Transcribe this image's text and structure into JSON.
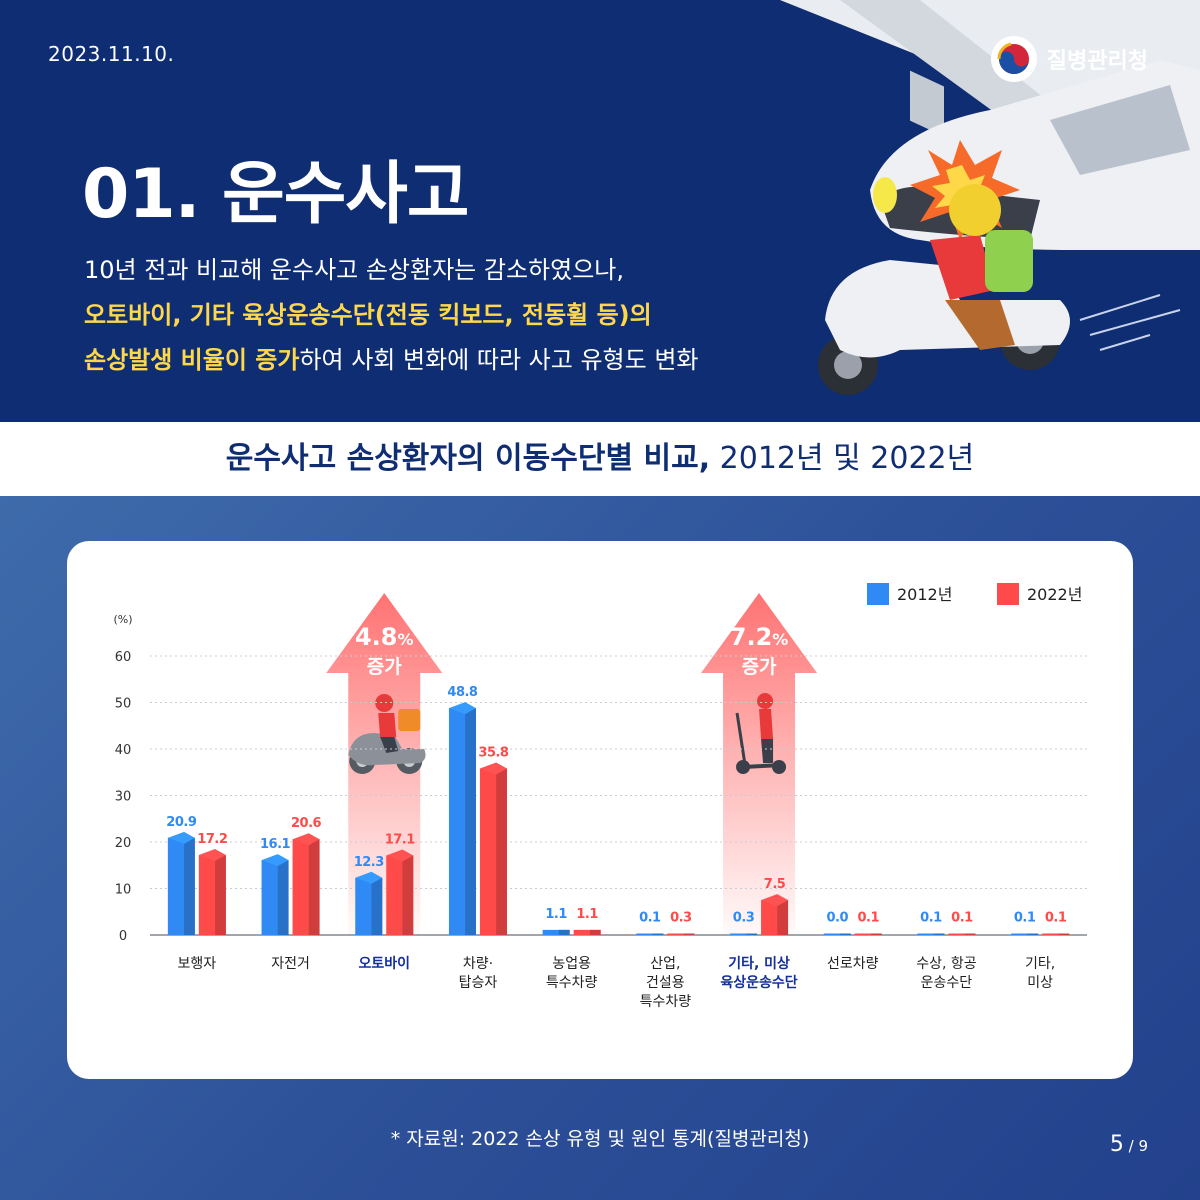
{
  "header": {
    "date": "2023.11.10.",
    "org": "질병관리청",
    "title": "01. 운수사고",
    "desc_line1": "10년 전과 비교해 운수사고 손상환자는 감소하였으나,",
    "desc_line2": "오토바이, 기타 육상운송수단(전동 킥보드, 전동휠 등)의",
    "desc_line3_hl": "손상발생 비율이 증가",
    "desc_line3_rest": "하여 사회 변화에 따라 사고 유형도 변화"
  },
  "subtitle": {
    "bold": "운수사고 손상환자의 이동수단별 비교,",
    "normal": " 2012년 및 2022년"
  },
  "chart_data": {
    "type": "bar",
    "title": "운수사고 손상환자의 이동수단별 비교, 2012년 및 2022년",
    "yunit": "(%)",
    "ylim": [
      0,
      60
    ],
    "yticks": [
      0,
      10,
      20,
      30,
      40,
      50,
      60
    ],
    "grid": true,
    "legend_position": "top-right",
    "categories": [
      {
        "lines": [
          "보행자"
        ],
        "highlight": false
      },
      {
        "lines": [
          "자전거"
        ],
        "highlight": false
      },
      {
        "lines": [
          "오토바이"
        ],
        "highlight": true
      },
      {
        "lines": [
          "차량·",
          "탑승자"
        ],
        "highlight": false
      },
      {
        "lines": [
          "농업용",
          "특수차량"
        ],
        "highlight": false
      },
      {
        "lines": [
          "산업,",
          "건설용",
          "특수차량"
        ],
        "highlight": false
      },
      {
        "lines": [
          "기타, 미상",
          "육상운송수단"
        ],
        "highlight": true
      },
      {
        "lines": [
          "선로차량"
        ],
        "highlight": false
      },
      {
        "lines": [
          "수상, 항공",
          "운송수단"
        ],
        "highlight": false
      },
      {
        "lines": [
          "기타,",
          "미상"
        ],
        "highlight": false
      }
    ],
    "series": [
      {
        "name": "2012년",
        "color": "#2f8af5",
        "values": [
          20.9,
          16.1,
          12.3,
          48.8,
          1.1,
          0.1,
          0.3,
          0.0,
          0.1,
          0.1
        ],
        "labels": [
          "20.9",
          "16.1",
          "12.3",
          "48.8",
          "1.1",
          "0.1",
          "0.3",
          "0.0",
          "0.1",
          "0.1"
        ]
      },
      {
        "name": "2022년",
        "color": "#ff4a4a",
        "values": [
          17.2,
          20.6,
          17.1,
          35.8,
          1.1,
          0.3,
          7.5,
          0.1,
          0.1,
          0.1
        ],
        "labels": [
          "17.2",
          "20.6",
          "17.1",
          "35.8",
          "1.1",
          "0.3",
          "7.5",
          "0.1",
          "0.1",
          "0.1"
        ]
      }
    ],
    "annotations": [
      {
        "category_index": 2,
        "value": "4.8",
        "unit": "%",
        "text": "증가",
        "icon": "motorcycle-rider-icon"
      },
      {
        "category_index": 6,
        "value": "7.2",
        "unit": "%",
        "text": "증가",
        "icon": "electric-scooter-rider-icon"
      }
    ]
  },
  "footer": {
    "source": "* 자료원: 2022 손상 유형 및 원인 통계(질병관리청)",
    "page_current": "5",
    "page_total": " / 9"
  },
  "colors": {
    "navy": "#0f2d72",
    "yellow": "#ffd84a",
    "blue": "#2f8af5",
    "red": "#ff4a4a"
  }
}
